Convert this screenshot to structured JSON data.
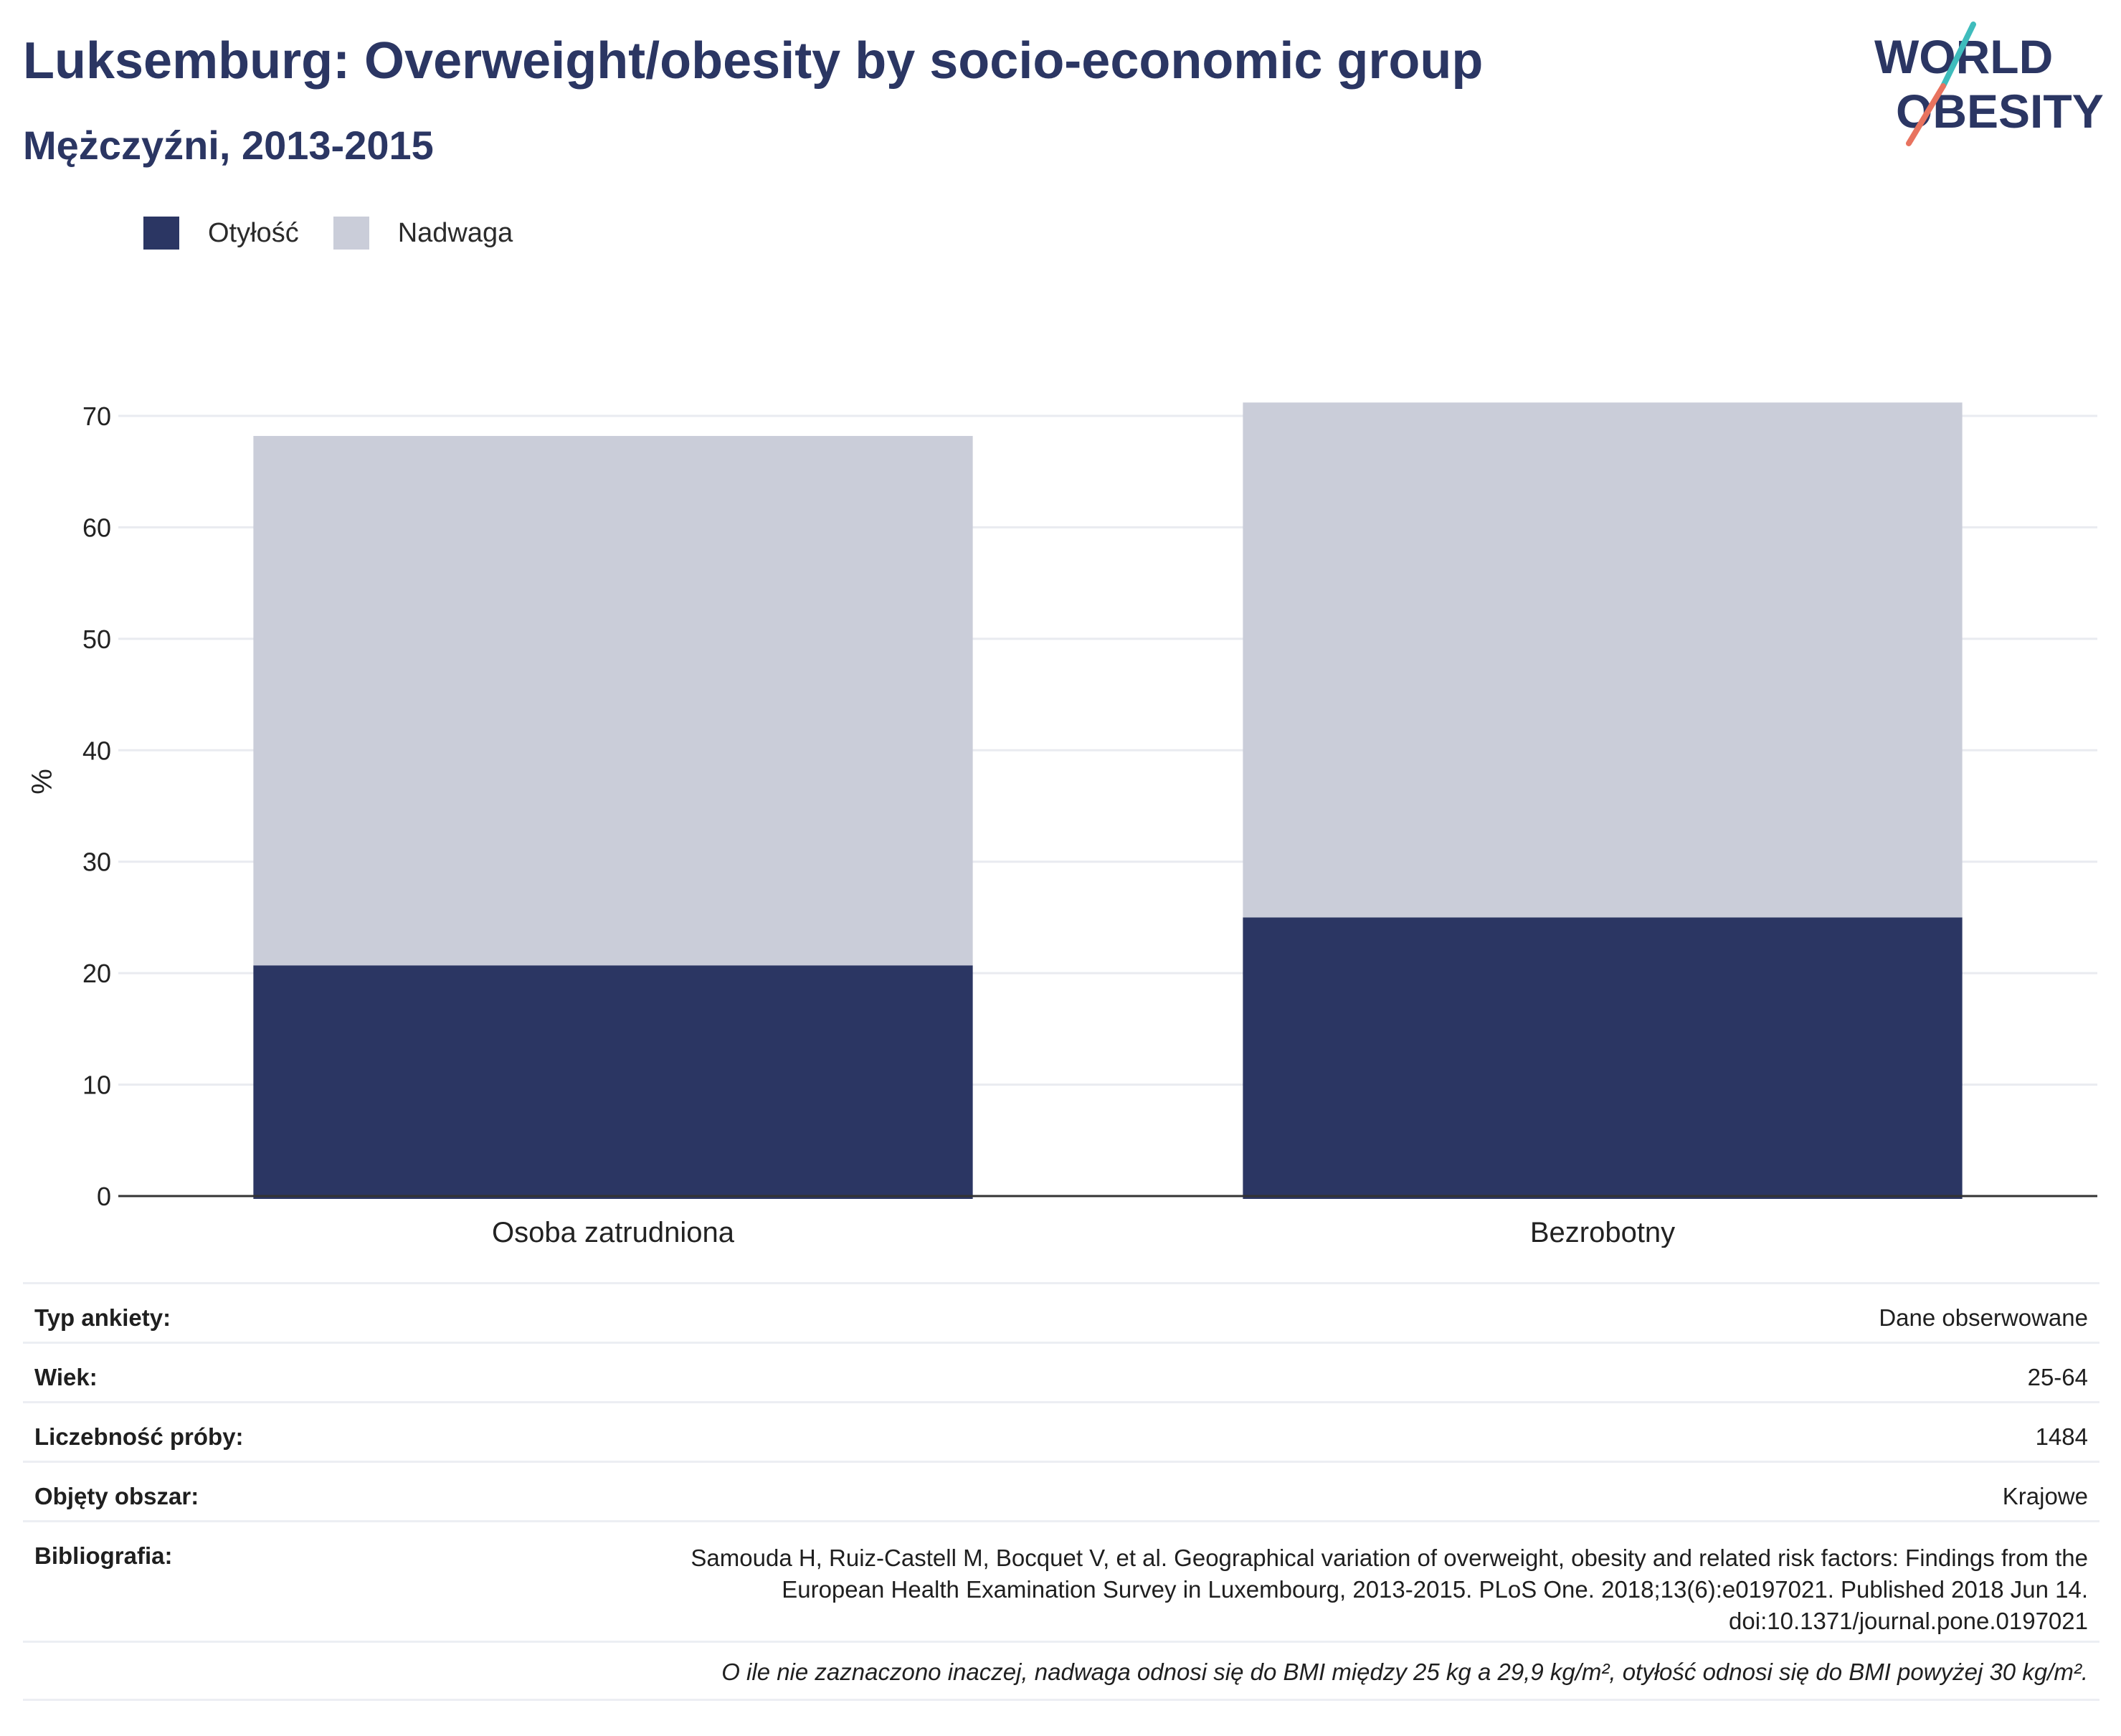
{
  "header": {
    "title": "Luksemburg: Overweight/obesity by socio-economic group",
    "subtitle": "Mężczyźni, 2013-2015"
  },
  "logo": {
    "line1": "WORLD",
    "line2": "OBESITY",
    "colors": {
      "text": "#2b3663",
      "slash_top": "#3fbcbc",
      "slash_bottom": "#e8735f"
    }
  },
  "colors": {
    "obesity": "#2b3663",
    "overweight": "#cacdd9",
    "grid": "#e9ebf0",
    "axis": "#333333"
  },
  "legend": [
    {
      "label": "Otyłość",
      "color": "#2b3663"
    },
    {
      "label": "Nadwaga",
      "color": "#cacdd9"
    }
  ],
  "chart_data": {
    "type": "bar",
    "stacked": true,
    "categories": [
      "Osoba zatrudniona",
      "Bezrobotny"
    ],
    "series": [
      {
        "name": "Otyłość",
        "values": [
          20.7,
          25.0
        ]
      },
      {
        "name": "Nadwaga",
        "values": [
          47.5,
          46.2
        ]
      }
    ],
    "ylabel": "%",
    "ylim": [
      0,
      70
    ],
    "yticks": [
      0,
      10,
      20,
      30,
      40,
      50,
      60,
      70
    ],
    "grid": true,
    "legend_position": "top-left"
  },
  "info": {
    "survey_type": {
      "label": "Typ ankiety:",
      "value": "Dane obserwowane"
    },
    "age": {
      "label": "Wiek:",
      "value": "25-64"
    },
    "sample_size": {
      "label": "Liczebność próby:",
      "value": "1484"
    },
    "area": {
      "label": "Objęty obszar:",
      "value": "Krajowe"
    },
    "bibliography": {
      "label": "Bibliografia:",
      "value": "Samouda H, Ruiz-Castell M, Bocquet V, et al. Geographical variation of overweight, obesity and related risk factors: Findings from the European Health Examination Survey in Luxembourg, 2013-2015. PLoS One. 2018;13(6):e0197021. Published 2018 Jun 14. doi:10.1371/journal.pone.0197021"
    },
    "note": "O ile nie zaznaczono inaczej, nadwaga odnosi się do BMI między 25 kg a 29,9 kg/m², otyłość odnosi się do BMI powyżej 30 kg/m²."
  }
}
